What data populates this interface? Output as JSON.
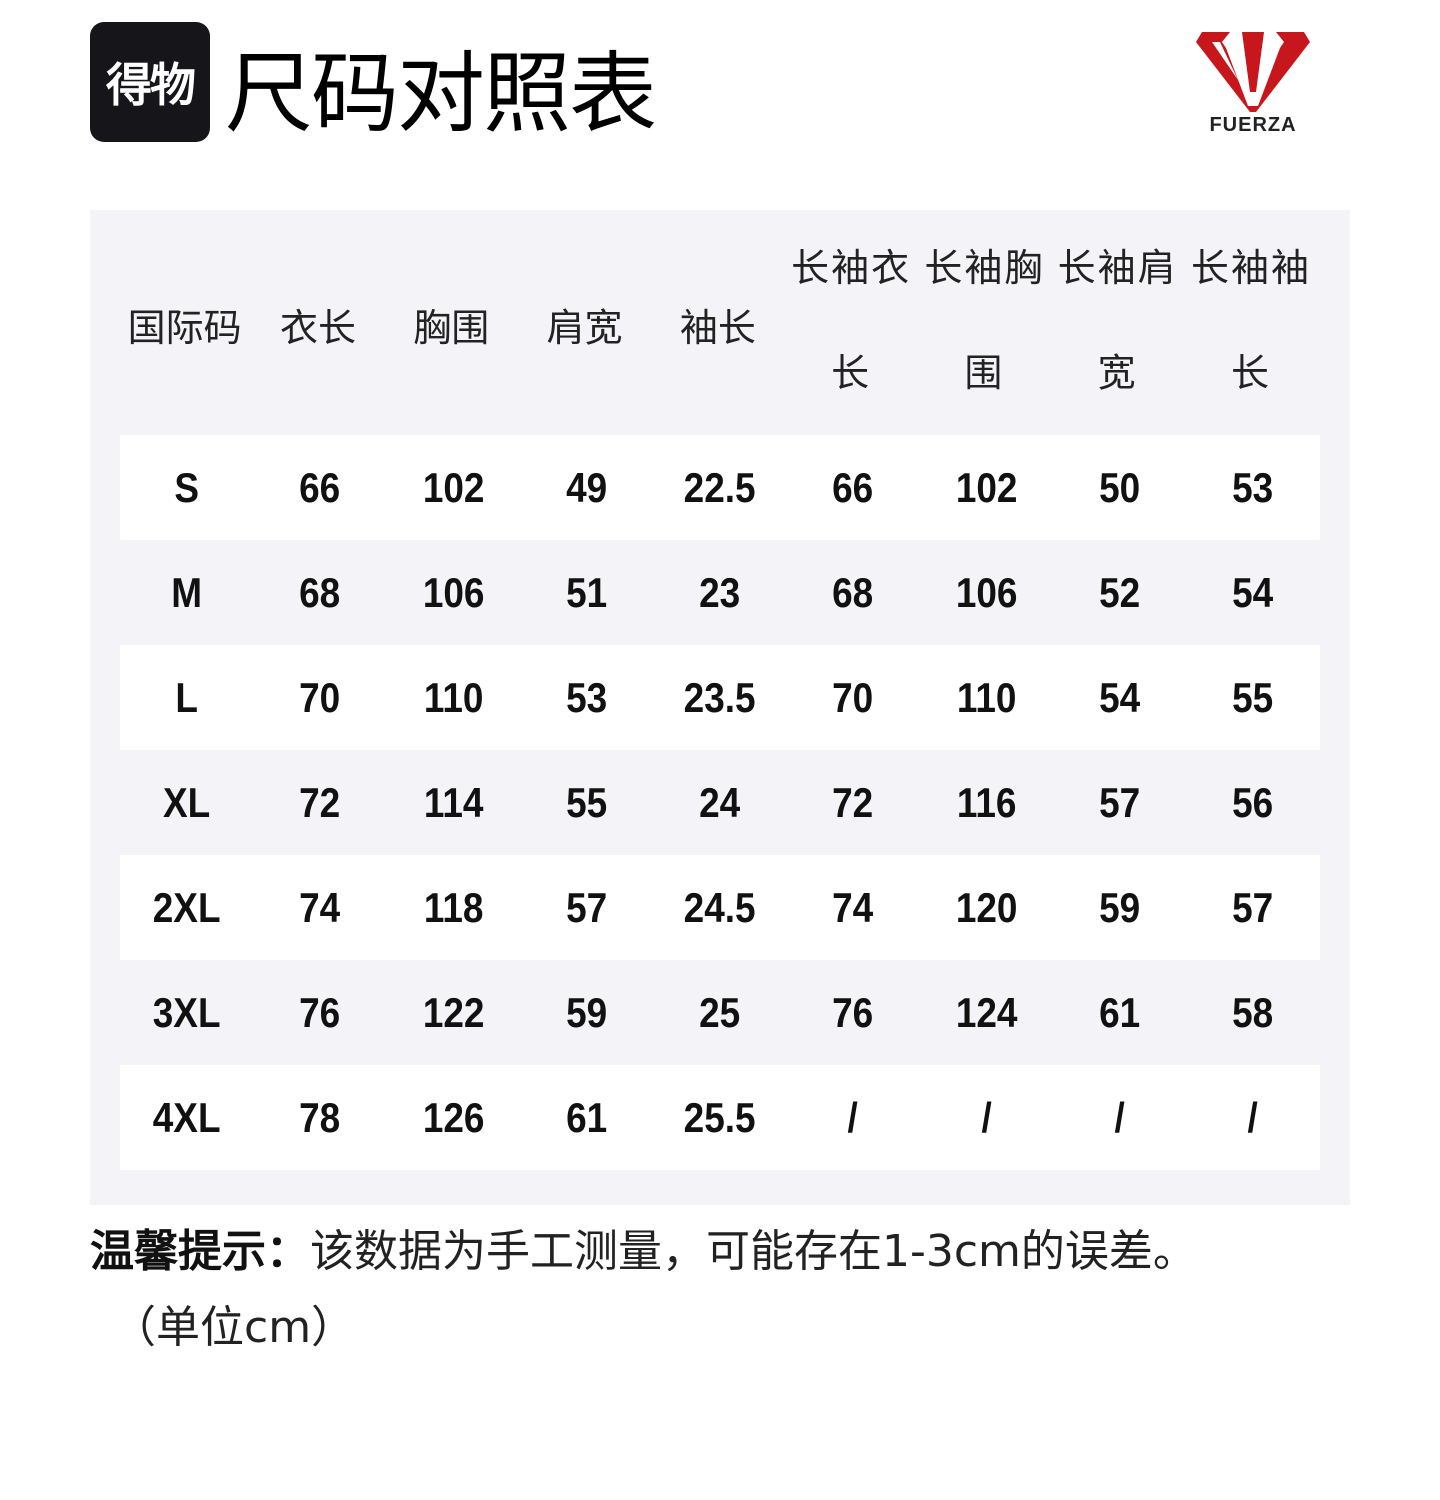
{
  "header": {
    "badge": "得物",
    "title": "尺码对照表",
    "brand": "FUERZA",
    "brand_color": "#c8161d"
  },
  "table": {
    "headers": [
      "国际码",
      "衣长",
      "胸围",
      "肩宽",
      "袖长",
      "长袖衣长",
      "长袖胸围",
      "长袖肩宽",
      "长袖袖长"
    ],
    "rows": [
      [
        "S",
        "66",
        "102",
        "49",
        "22.5",
        "66",
        "102",
        "50",
        "53"
      ],
      [
        "M",
        "68",
        "106",
        "51",
        "23",
        "68",
        "106",
        "52",
        "54"
      ],
      [
        "L",
        "70",
        "110",
        "53",
        "23.5",
        "70",
        "110",
        "54",
        "55"
      ],
      [
        "XL",
        "72",
        "114",
        "55",
        "24",
        "72",
        "116",
        "57",
        "56"
      ],
      [
        "2XL",
        "74",
        "118",
        "57",
        "24.5",
        "74",
        "120",
        "59",
        "57"
      ],
      [
        "3XL",
        "76",
        "122",
        "59",
        "25",
        "76",
        "124",
        "61",
        "58"
      ],
      [
        "4XL",
        "78",
        "126",
        "61",
        "25.5",
        "/",
        "/",
        "/",
        "/"
      ]
    ]
  },
  "footer": {
    "tip_label": "温馨提示：",
    "tip_text": "该数据为手工测量，可能存在1-3cm的误差。",
    "unit": "（单位cm）"
  }
}
